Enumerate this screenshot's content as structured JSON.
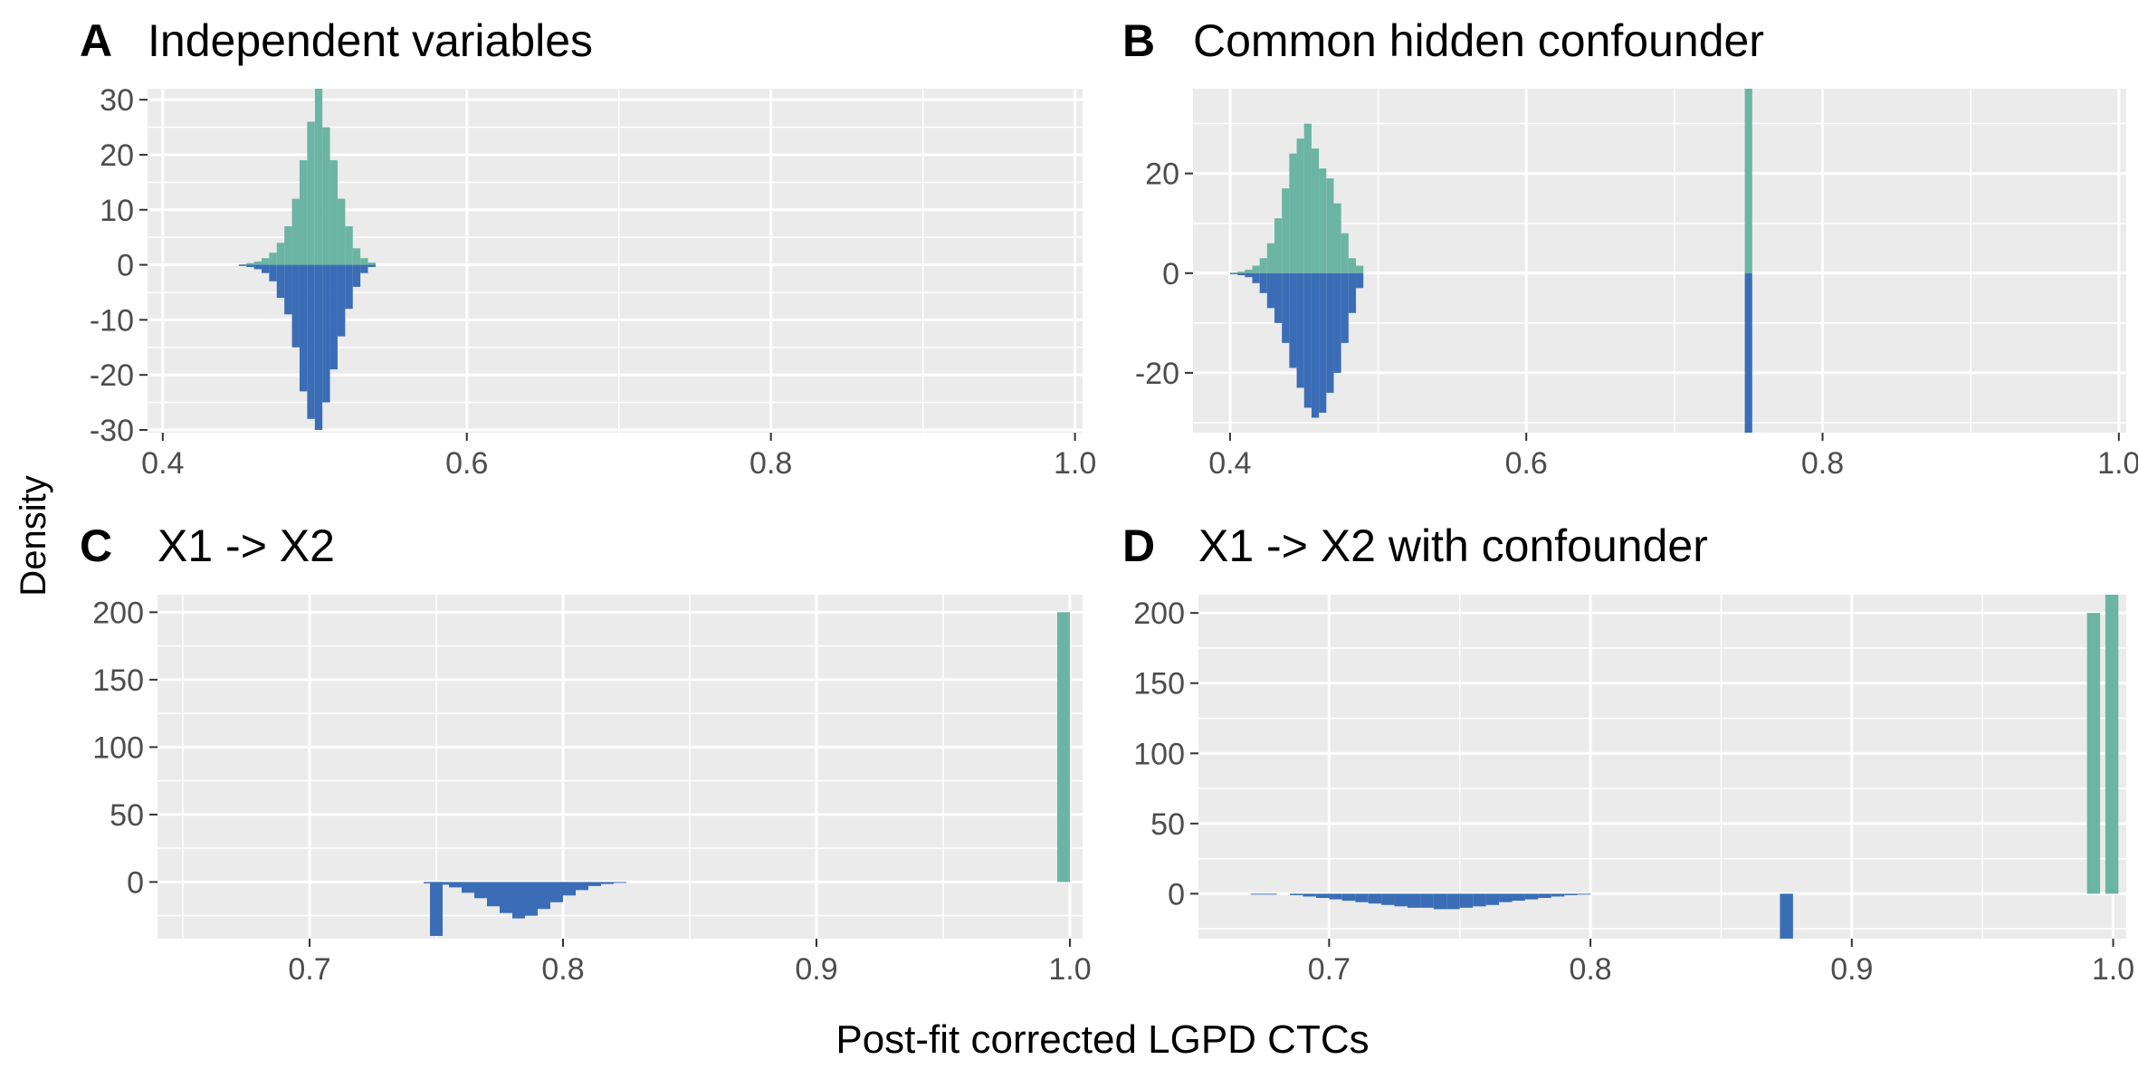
{
  "figure": {
    "ylabel": "Density",
    "xlabel": "Post-fit corrected LGPD CTCs",
    "colors": {
      "upper": "#6bb5a2",
      "lower": "#3b6db6",
      "panel_bg": "#ebebeb",
      "grid": "#ffffff"
    }
  },
  "chart_data": [
    {
      "type": "bar",
      "tag": "A",
      "title": "Independent variables",
      "xlim": [
        0.39,
        1.005
      ],
      "ylim": [
        -30.5,
        32
      ],
      "xticks": [
        0.4,
        0.6,
        0.8,
        1.0
      ],
      "xtick_labels": [
        "0.4",
        "0.6",
        "0.8",
        "1.0"
      ],
      "yticks": [
        30,
        20,
        10,
        0,
        -10,
        -20,
        -30
      ],
      "ytick_labels": [
        "30",
        "20",
        "10",
        "0",
        "-10",
        "-20",
        "-30"
      ],
      "bin_width": 0.005,
      "series": [
        {
          "color": "upper",
          "x": [
            0.4525,
            0.4575,
            0.4625,
            0.4675,
            0.4725,
            0.4775,
            0.4825,
            0.4875,
            0.4925,
            0.4975,
            0.5025,
            0.5075,
            0.5125,
            0.5175,
            0.5225,
            0.5275,
            0.5325,
            0.5375
          ],
          "values": [
            0.1,
            0.3,
            0.6,
            1.2,
            2.2,
            4,
            7,
            12,
            19,
            26,
            32,
            25,
            19,
            12,
            7,
            3,
            1.2,
            0.4
          ]
        },
        {
          "color": "lower",
          "x": [
            0.4525,
            0.4575,
            0.4625,
            0.4675,
            0.4725,
            0.4775,
            0.4825,
            0.4875,
            0.4925,
            0.4975,
            0.5025,
            0.5075,
            0.5125,
            0.5175,
            0.5225,
            0.5275,
            0.5325,
            0.5375
          ],
          "values": [
            -0.2,
            -0.4,
            -0.8,
            -1.5,
            -3,
            -6,
            -9,
            -15,
            -23,
            -28,
            -30,
            -25,
            -19,
            -13,
            -8,
            -4,
            -1.5,
            -0.4
          ]
        }
      ]
    },
    {
      "type": "bar",
      "tag": "B",
      "title": "Common hidden confounder",
      "xlim": [
        0.375,
        1.005
      ],
      "ylim": [
        -32,
        37
      ],
      "xticks": [
        0.4,
        0.6,
        0.8,
        1.0
      ],
      "xtick_labels": [
        "0.4",
        "0.6",
        "0.8",
        "1.0"
      ],
      "yticks": [
        20,
        0,
        -20
      ],
      "ytick_labels": [
        "20",
        "0",
        "-20"
      ],
      "bin_width": 0.005,
      "series": [
        {
          "color": "upper",
          "x": [
            0.4025,
            0.4075,
            0.4125,
            0.4175,
            0.4225,
            0.4275,
            0.4325,
            0.4375,
            0.4425,
            0.4475,
            0.4525,
            0.4575,
            0.4625,
            0.4675,
            0.4725,
            0.4775,
            0.4825,
            0.4875,
            0.75
          ],
          "values": [
            0.1,
            0.3,
            0.7,
            1.5,
            3,
            6,
            11,
            17,
            24,
            27,
            30,
            25,
            21,
            19,
            14,
            8,
            3,
            1.5,
            37
          ]
        },
        {
          "color": "lower",
          "x": [
            0.4025,
            0.4075,
            0.4125,
            0.4175,
            0.4225,
            0.4275,
            0.4325,
            0.4375,
            0.4425,
            0.4475,
            0.4525,
            0.4575,
            0.4625,
            0.4675,
            0.4725,
            0.4775,
            0.4825,
            0.4875,
            0.75
          ],
          "values": [
            -0.2,
            -0.4,
            -0.8,
            -2,
            -4,
            -7,
            -10,
            -14,
            -19,
            -23,
            -27,
            -29,
            -28,
            -24,
            -20,
            -14,
            -8,
            -3,
            -32
          ]
        }
      ]
    },
    {
      "type": "bar",
      "tag": "C",
      "title": "X1 -> X2",
      "xlim": [
        0.64,
        1.005
      ],
      "ylim": [
        -42,
        213
      ],
      "xticks": [
        0.7,
        0.8,
        0.9,
        1.0
      ],
      "xtick_labels": [
        "0.7",
        "0.8",
        "0.9",
        "1.0"
      ],
      "yticks": [
        200,
        150,
        100,
        50,
        0
      ],
      "ytick_labels": [
        "200",
        "150",
        "100",
        "50",
        "0"
      ],
      "bin_width": 0.005,
      "series": [
        {
          "color": "upper",
          "x": [
            0.9975
          ],
          "values": [
            200
          ]
        },
        {
          "color": "lower",
          "x": [
            0.7475,
            0.75,
            0.7525,
            0.7575,
            0.7625,
            0.7675,
            0.7725,
            0.7775,
            0.7825,
            0.7875,
            0.7925,
            0.7975,
            0.8025,
            0.8075,
            0.8125,
            0.8175,
            0.8225
          ],
          "values": [
            -1,
            -40,
            -2,
            -4,
            -8,
            -12,
            -18,
            -23,
            -27,
            -25,
            -20,
            -15,
            -10,
            -6,
            -3,
            -1.5,
            -0.5
          ]
        }
      ]
    },
    {
      "type": "bar",
      "tag": "D",
      "title": "X1 -> X2 with confounder",
      "xlim": [
        0.65,
        1.005
      ],
      "ylim": [
        -32,
        213
      ],
      "xticks": [
        0.7,
        0.8,
        0.9,
        1.0
      ],
      "xtick_labels": [
        "0.7",
        "0.8",
        "0.9",
        "1.0"
      ],
      "yticks": [
        200,
        150,
        100,
        50,
        0
      ],
      "ytick_labels": [
        "200",
        "150",
        "100",
        "50",
        "0"
      ],
      "bin_width": 0.005,
      "series": [
        {
          "color": "upper",
          "x": [
            0.9925,
            0.9995
          ],
          "values": [
            200,
            213
          ]
        },
        {
          "color": "lower",
          "x": [
            0.6725,
            0.6775,
            0.6875,
            0.6925,
            0.6975,
            0.7025,
            0.7075,
            0.7125,
            0.7175,
            0.7225,
            0.7275,
            0.7325,
            0.7375,
            0.7425,
            0.7475,
            0.7525,
            0.7575,
            0.7625,
            0.7675,
            0.7725,
            0.7775,
            0.7825,
            0.7875,
            0.7925,
            0.7975,
            0.875
          ],
          "values": [
            -0.5,
            -0.5,
            -1,
            -2,
            -3,
            -4,
            -5,
            -6,
            -7,
            -8,
            -9,
            -10,
            -10,
            -11,
            -11,
            -10,
            -9,
            -8,
            -6,
            -5,
            -4,
            -3,
            -2,
            -1,
            -0.5,
            -32
          ]
        }
      ]
    }
  ]
}
